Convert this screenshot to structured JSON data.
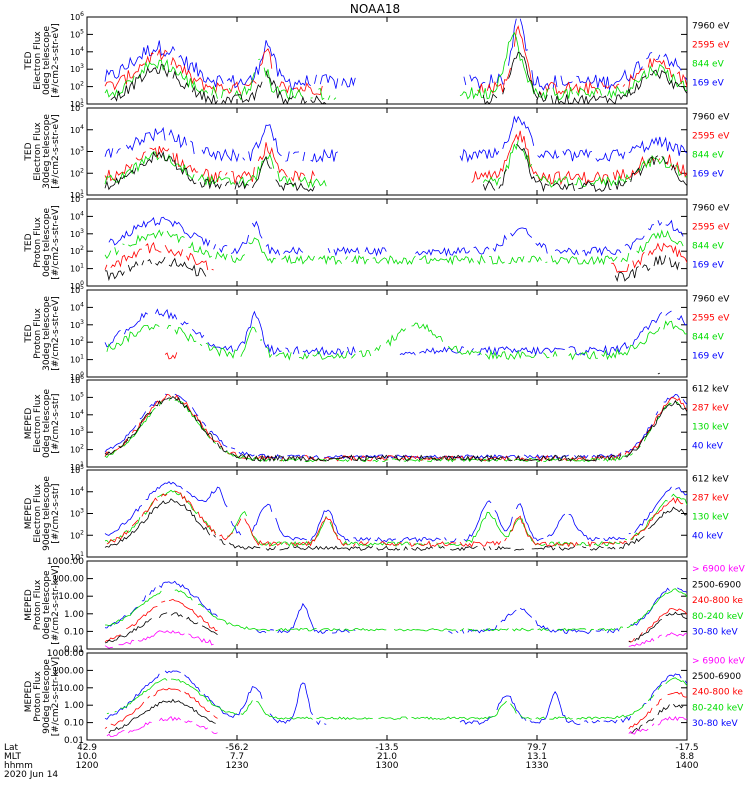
{
  "title": "NOAA18",
  "colors": {
    "black": "#000000",
    "red": "#ff0000",
    "green": "#00dd00",
    "blue": "#0000ff",
    "magenta": "#ff00ff"
  },
  "time_axis": {
    "rows": [
      {
        "label": "Lat",
        "values": [
          "42.9",
          "-56.2",
          "-13.5",
          "79.7",
          "-17.5"
        ]
      },
      {
        "label": "MLT",
        "values": [
          "10.0",
          "7.7",
          "21.0",
          "13.1",
          "8.8"
        ]
      },
      {
        "label": "hhmm",
        "values": [
          "1200",
          "1230",
          "1300",
          "1330",
          "1400"
        ]
      }
    ],
    "date": "2020 Jun 14"
  },
  "chart_data": [
    {
      "type": "line",
      "ylabel": [
        "TED",
        "Electron Flux",
        "0deg telescope",
        "[#/cm2-s-str-eV]"
      ],
      "ticks": [
        "10^1",
        "10^2",
        "10^3",
        "10^4",
        "10^5",
        "10^6"
      ],
      "yscale": "log",
      "ylim": [
        1,
        1000000
      ],
      "legend": [
        {
          "name": "7960 eV",
          "color": "black"
        },
        {
          "name": "2595 eV",
          "color": "red"
        },
        {
          "name": "844 eV",
          "color": "green"
        },
        {
          "name": "169 eV",
          "color": "blue"
        }
      ]
    },
    {
      "type": "line",
      "ylabel": [
        "TED",
        "Electron Flux",
        "30deg telescope",
        "[#/cm2-s-str-eV]"
      ],
      "ticks": [
        "10^1",
        "10^2",
        "10^3",
        "10^4",
        "10^5"
      ],
      "yscale": "log",
      "ylim": [
        1,
        100000
      ],
      "legend": [
        {
          "name": "7960 eV",
          "color": "black"
        },
        {
          "name": "2595 eV",
          "color": "red"
        },
        {
          "name": "844 eV",
          "color": "green"
        },
        {
          "name": "169 eV",
          "color": "blue"
        }
      ]
    },
    {
      "type": "line",
      "ylabel": [
        "TED",
        "Proton Flux",
        "0deg telescope",
        "[#/cm2-s-str-eV]"
      ],
      "ticks": [
        "10^0",
        "10^1",
        "10^2",
        "10^3",
        "10^4",
        "10^5"
      ],
      "yscale": "log",
      "ylim": [
        1,
        100000
      ],
      "legend": [
        {
          "name": "7960 eV",
          "color": "black"
        },
        {
          "name": "2595 eV",
          "color": "red"
        },
        {
          "name": "844 eV",
          "color": "green"
        },
        {
          "name": "169 eV",
          "color": "blue"
        }
      ]
    },
    {
      "type": "line",
      "ylabel": [
        "TED",
        "Proton Flux",
        "30deg telescope",
        "[#/cm2-s-str-eV]"
      ],
      "ticks": [
        "10^0",
        "10^1",
        "10^2",
        "10^3",
        "10^4",
        "10^5"
      ],
      "yscale": "log",
      "ylim": [
        1,
        100000
      ],
      "legend": [
        {
          "name": "7960 eV",
          "color": "black"
        },
        {
          "name": "2595 eV",
          "color": "red"
        },
        {
          "name": "844 eV",
          "color": "green"
        },
        {
          "name": "169 eV",
          "color": "blue"
        }
      ]
    },
    {
      "type": "line",
      "ylabel": [
        "MEPED",
        "Electron Flux",
        "0deg telescope",
        "[#/cm2-s-str]"
      ],
      "ticks": [
        "10^1",
        "10^2",
        "10^3",
        "10^4",
        "10^5",
        "10^6"
      ],
      "yscale": "log",
      "ylim": [
        10,
        1000000
      ],
      "legend": [
        {
          "name": "612 keV",
          "color": "black"
        },
        {
          "name": "287 keV",
          "color": "red"
        },
        {
          "name": "130 keV",
          "color": "green"
        },
        {
          "name": "40 keV",
          "color": "blue"
        }
      ]
    },
    {
      "type": "line",
      "ylabel": [
        "MEPED",
        "Electron Flux",
        "90deg telescope",
        "[#/cm2-s-str]"
      ],
      "ticks": [
        "10^1",
        "10^2",
        "10^3",
        "10^4",
        "10^5"
      ],
      "yscale": "log",
      "ylim": [
        10,
        100000
      ],
      "legend": [
        {
          "name": "612 keV",
          "color": "black"
        },
        {
          "name": "287 keV",
          "color": "red"
        },
        {
          "name": "130 keV",
          "color": "green"
        },
        {
          "name": "40 keV",
          "color": "blue"
        }
      ]
    },
    {
      "type": "line",
      "ylabel": [
        "MEPED",
        "Proton Flux",
        "0deg telescope",
        "[#/cm2-s-str-keV]"
      ],
      "ticks": [
        "0.01",
        "0.10",
        "1.00",
        "10.00",
        "100.00",
        "1000.00"
      ],
      "yscale": "log",
      "ylim": [
        0.01,
        1000
      ],
      "legend": [
        {
          "name": "> 6900 keV",
          "color": "magenta"
        },
        {
          "name": "2500-6900",
          "color": "black"
        },
        {
          "name": "240-800 ke",
          "color": "red"
        },
        {
          "name": "80-240 keV",
          "color": "green"
        },
        {
          "name": "30-80 keV",
          "color": "blue"
        }
      ]
    },
    {
      "type": "line",
      "ylabel": [
        "MEPED",
        "Proton Flux",
        "90deg telescope",
        "[#/cm2-s-str-keV]"
      ],
      "ticks": [
        "0.01",
        "0.10",
        "1.00",
        "10.00",
        "100.00",
        "1000.00"
      ],
      "yscale": "log",
      "ylim": [
        0.01,
        1000
      ],
      "legend": [
        {
          "name": "> 6900 keV",
          "color": "magenta"
        },
        {
          "name": "2500-6900",
          "color": "black"
        },
        {
          "name": "240-800 ke",
          "color": "red"
        },
        {
          "name": "80-240 keV",
          "color": "green"
        },
        {
          "name": "30-80 keV",
          "color": "blue"
        }
      ]
    }
  ]
}
